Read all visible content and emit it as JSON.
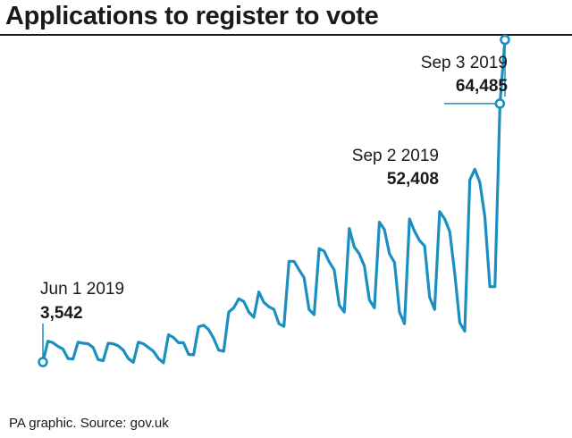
{
  "header": {
    "title": "Applications to register to vote"
  },
  "footer": {
    "source": "PA graphic. Source: gov.uk"
  },
  "colors": {
    "line": "#1b8fc0",
    "text": "#1a1a1a",
    "rule": "#1a1a1a"
  },
  "chart_data": {
    "type": "line",
    "title": "Applications to register to vote",
    "xlabel": "",
    "ylabel": "",
    "grid": false,
    "legend": "none",
    "x_start": "2019-06-01",
    "x_end": "2019-09-03",
    "ylim": [
      0,
      70000
    ],
    "series": [
      {
        "values": [
          3542,
          7500,
          7200,
          6500,
          6000,
          4200,
          4100,
          7300,
          7100,
          7000,
          6300,
          4000,
          3800,
          7100,
          7000,
          6600,
          5800,
          4200,
          3500,
          7300,
          7000,
          6300,
          5600,
          4200,
          3400,
          8700,
          8200,
          7200,
          7200,
          5000,
          4900,
          10200,
          10500,
          9700,
          8000,
          5800,
          5600,
          13000,
          13800,
          15500,
          15000,
          13000,
          12000,
          16800,
          14800,
          14000,
          13500,
          10800,
          10300,
          22600,
          22600,
          21000,
          19500,
          13500,
          12500,
          25000,
          24500,
          22500,
          21000,
          14300,
          13000,
          28800,
          25300,
          24000,
          21700,
          15300,
          13800,
          30000,
          28600,
          24000,
          22400,
          13000,
          10800,
          30600,
          28300,
          26500,
          25500,
          15800,
          13500,
          32000,
          30600,
          28200,
          20300,
          11000,
          9400,
          38000,
          40000,
          37500,
          31000,
          17800,
          17800,
          52408,
          64485
        ]
      }
    ],
    "annotations": [
      {
        "date": "Jun 1 2019",
        "value": "3,542"
      },
      {
        "date": "Sep 2 2019",
        "value": "52,408"
      },
      {
        "date": "Sep 3 2019",
        "value": "64,485"
      }
    ]
  }
}
